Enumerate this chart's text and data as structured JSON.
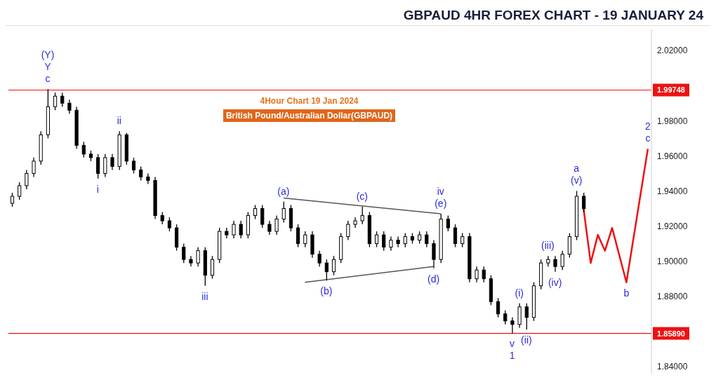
{
  "chart_data": {
    "type": "candlestick",
    "title": "GBPAUD 4HR FOREX CHART - 19 JANUARY 24",
    "subtitle": "4Hour Chart 19 Jan 2024",
    "color": "#000000",
    "categories": [
      null,
      null,
      null,
      null,
      null,
      null,
      null,
      null,
      null,
      null,
      null,
      null,
      null,
      null,
      null,
      null,
      null,
      null,
      null,
      null,
      null,
      null,
      null,
      null,
      null,
      null,
      null,
      null,
      null,
      null,
      null,
      null,
      null,
      null,
      null,
      null,
      null,
      null,
      null,
      null,
      null,
      null,
      null,
      null,
      null,
      null,
      null,
      null,
      null,
      null,
      null,
      null,
      null,
      null,
      null,
      null,
      null,
      null,
      null,
      null,
      null,
      null,
      null,
      null,
      null,
      null,
      null,
      null,
      null,
      null,
      null,
      null,
      null,
      null,
      null,
      null,
      null,
      null,
      null,
      null,
      null,
      null,
      null,
      null,
      null,
      null,
      null,
      null,
      null,
      null
    ],
    "ohlc": [
      [
        1.933,
        1.939,
        1.931,
        1.937
      ],
      [
        1.937,
        1.945,
        1.935,
        1.943
      ],
      [
        1.943,
        1.952,
        1.941,
        1.95
      ],
      [
        1.95,
        1.959,
        1.948,
        1.957
      ],
      [
        1.957,
        1.974,
        1.955,
        1.972
      ],
      [
        1.972,
        1.998,
        1.97,
        1.988
      ],
      [
        1.988,
        1.996,
        1.986,
        1.994
      ],
      [
        1.994,
        1.996,
        1.988,
        1.99
      ],
      [
        1.99,
        1.992,
        1.984,
        1.986
      ],
      [
        1.986,
        1.988,
        1.964,
        1.966
      ],
      [
        1.966,
        1.968,
        1.959,
        1.961
      ],
      [
        1.961,
        1.963,
        1.957,
        1.959
      ],
      [
        1.959,
        1.961,
        1.947,
        1.95
      ],
      [
        1.95,
        1.961,
        1.948,
        1.959
      ],
      [
        1.959,
        1.961,
        1.952,
        1.954
      ],
      [
        1.954,
        1.974,
        1.952,
        1.972
      ],
      [
        1.972,
        1.973,
        1.955,
        1.957
      ],
      [
        1.957,
        1.959,
        1.95,
        1.952
      ],
      [
        1.952,
        1.954,
        1.946,
        1.948
      ],
      [
        1.948,
        1.95,
        1.944,
        1.946
      ],
      [
        1.946,
        1.948,
        1.924,
        1.926
      ],
      [
        1.926,
        1.928,
        1.921,
        1.923
      ],
      [
        1.923,
        1.925,
        1.917,
        1.919
      ],
      [
        1.919,
        1.921,
        1.906,
        1.908
      ],
      [
        1.908,
        1.91,
        1.899,
        1.901
      ],
      [
        1.901,
        1.903,
        1.897,
        1.899
      ],
      [
        1.899,
        1.908,
        1.897,
        1.906
      ],
      [
        1.906,
        1.908,
        1.886,
        1.892
      ],
      [
        1.892,
        1.903,
        1.89,
        1.901
      ],
      [
        1.901,
        1.919,
        1.899,
        1.917
      ],
      [
        1.917,
        1.919,
        1.913,
        1.915
      ],
      [
        1.915,
        1.923,
        1.913,
        1.921
      ],
      [
        1.921,
        1.923,
        1.913,
        1.915
      ],
      [
        1.915,
        1.928,
        1.913,
        1.926
      ],
      [
        1.926,
        1.932,
        1.924,
        1.93
      ],
      [
        1.93,
        1.932,
        1.919,
        1.921
      ],
      [
        1.921,
        1.923,
        1.915,
        1.917
      ],
      [
        1.917,
        1.926,
        1.915,
        1.924
      ],
      [
        1.924,
        1.934,
        1.922,
        1.93
      ],
      [
        1.93,
        1.932,
        1.917,
        1.919
      ],
      [
        1.919,
        1.921,
        1.908,
        1.91
      ],
      [
        1.91,
        1.917,
        1.908,
        1.915
      ],
      [
        1.915,
        1.917,
        1.902,
        1.904
      ],
      [
        1.904,
        1.906,
        1.897,
        1.899
      ],
      [
        1.899,
        1.901,
        1.889,
        1.894
      ],
      [
        1.894,
        1.903,
        1.892,
        1.901
      ],
      [
        1.901,
        1.916,
        1.899,
        1.914
      ],
      [
        1.914,
        1.923,
        1.912,
        1.921
      ],
      [
        1.921,
        1.925,
        1.919,
        1.923
      ],
      [
        1.923,
        1.931,
        1.921,
        1.926
      ],
      [
        1.926,
        1.928,
        1.908,
        1.91
      ],
      [
        1.91,
        1.917,
        1.908,
        1.915
      ],
      [
        1.915,
        1.917,
        1.906,
        1.908
      ],
      [
        1.908,
        1.914,
        1.906,
        1.912
      ],
      [
        1.912,
        1.914,
        1.908,
        1.91
      ],
      [
        1.91,
        1.916,
        1.908,
        1.914
      ],
      [
        1.914,
        1.916,
        1.91,
        1.912
      ],
      [
        1.912,
        1.917,
        1.91,
        1.915
      ],
      [
        1.915,
        1.917,
        1.908,
        1.91
      ],
      [
        1.91,
        1.912,
        1.896,
        1.901
      ],
      [
        1.901,
        1.927,
        1.899,
        1.924
      ],
      [
        1.924,
        1.926,
        1.917,
        1.919
      ],
      [
        1.919,
        1.921,
        1.908,
        1.91
      ],
      [
        1.91,
        1.916,
        1.908,
        1.914
      ],
      [
        1.914,
        1.916,
        1.888,
        1.89
      ],
      [
        1.89,
        1.897,
        1.888,
        1.895
      ],
      [
        1.895,
        1.897,
        1.888,
        1.89
      ],
      [
        1.89,
        1.892,
        1.875,
        1.877
      ],
      [
        1.877,
        1.879,
        1.868,
        1.87
      ],
      [
        1.87,
        1.872,
        1.864,
        1.866
      ],
      [
        1.866,
        1.868,
        1.859,
        1.864
      ],
      [
        1.864,
        1.876,
        1.862,
        1.874
      ],
      [
        1.874,
        1.876,
        1.861,
        1.868
      ],
      [
        1.868,
        1.888,
        1.866,
        1.886
      ],
      [
        1.886,
        1.901,
        1.884,
        1.899
      ],
      [
        1.899,
        1.903,
        1.897,
        1.901
      ],
      [
        1.901,
        1.903,
        1.894,
        1.897
      ],
      [
        1.897,
        1.906,
        1.895,
        1.904
      ],
      [
        1.904,
        1.916,
        1.902,
        1.914
      ],
      [
        1.914,
        1.94,
        1.912,
        1.937
      ],
      [
        1.937,
        1.939,
        1.928,
        1.93
      ],
      null,
      null,
      null,
      null,
      null,
      null,
      null,
      null,
      null
    ],
    "series": [
      {
        "type": "line",
        "color": "#ee1111",
        "values": [
          null,
          null,
          null,
          null,
          null,
          null,
          null,
          null,
          null,
          null,
          null,
          null,
          null,
          null,
          null,
          null,
          null,
          null,
          null,
          null,
          null,
          null,
          null,
          null,
          null,
          null,
          null,
          null,
          null,
          null,
          null,
          null,
          null,
          null,
          null,
          null,
          null,
          null,
          null,
          null,
          null,
          null,
          null,
          null,
          null,
          null,
          null,
          null,
          null,
          null,
          null,
          null,
          null,
          null,
          null,
          null,
          null,
          null,
          null,
          null,
          null,
          null,
          null,
          null,
          null,
          null,
          null,
          null,
          null,
          null,
          null,
          null,
          null,
          null,
          null,
          null,
          null,
          null,
          null,
          null,
          1.93,
          1.899,
          1.915,
          1.906,
          1.919,
          null,
          1.888,
          null,
          null,
          1.964
        ]
      },
      {
        "type": "line",
        "color": "#555555",
        "values": [
          null,
          null,
          null,
          null,
          null,
          null,
          null,
          null,
          null,
          null,
          null,
          null,
          null,
          null,
          null,
          null,
          null,
          null,
          null,
          null,
          null,
          null,
          null,
          null,
          null,
          null,
          null,
          null,
          null,
          null,
          null,
          null,
          null,
          null,
          null,
          null,
          null,
          null,
          1.936,
          null,
          null,
          null,
          null,
          null,
          null,
          null,
          null,
          null,
          null,
          null,
          null,
          null,
          null,
          null,
          null,
          null,
          null,
          null,
          null,
          null,
          1.927,
          null,
          null,
          null,
          null,
          null,
          null,
          null,
          null,
          null,
          null,
          null,
          null,
          null,
          null,
          null,
          null,
          null,
          null,
          null,
          null,
          null,
          null,
          null,
          null,
          null,
          null,
          null,
          null,
          null
        ]
      },
      {
        "type": "line",
        "color": "#555555",
        "values": [
          null,
          null,
          null,
          null,
          null,
          null,
          null,
          null,
          null,
          null,
          null,
          null,
          null,
          null,
          null,
          null,
          null,
          null,
          null,
          null,
          null,
          null,
          null,
          null,
          null,
          null,
          null,
          null,
          null,
          null,
          null,
          null,
          null,
          null,
          null,
          null,
          null,
          null,
          null,
          null,
          null,
          1.888,
          null,
          null,
          null,
          null,
          null,
          null,
          null,
          null,
          null,
          null,
          null,
          null,
          null,
          null,
          null,
          null,
          null,
          1.897,
          null,
          null,
          null,
          null,
          null,
          null,
          null,
          null,
          null,
          null,
          null,
          null,
          null,
          null,
          null,
          null,
          null,
          null,
          null,
          null,
          null,
          null,
          null,
          null,
          null,
          null,
          null,
          null,
          null,
          null
        ]
      }
    ],
    "ylim": [
      1.836,
      2.032
    ],
    "yticks": [
      {
        "value": 1.84,
        "label": "1.84000"
      },
      {
        "value": 1.88,
        "label": "1.88000"
      },
      {
        "value": 1.9,
        "label": "1.90000"
      },
      {
        "value": 1.92,
        "label": "1.92000"
      },
      {
        "value": 1.94,
        "label": "1.94000"
      },
      {
        "value": 1.96,
        "label": "1.96000"
      },
      {
        "value": 1.98,
        "label": "1.98000"
      },
      {
        "value": 2.02,
        "label": "2.02000"
      }
    ],
    "tick_labels": "y",
    "ref_lines": [
      {
        "axis": "y",
        "value": 1.99748,
        "label": "1.99748",
        "color": "#ee1111"
      },
      {
        "axis": "y",
        "value": 1.8589,
        "label": "1.85890",
        "color": "#ee1111"
      }
    ],
    "annotations": [
      {
        "text": "c",
        "y": 1.998
      },
      {
        "text": "Y",
        "y": 1.998
      },
      {
        "text": "(Y)",
        "y": 1.998
      },
      {
        "text": "i",
        "y": 1.947
      },
      {
        "text": "ii",
        "y": 1.974
      },
      {
        "text": "iii",
        "y": 1.886
      },
      {
        "text": "(a)",
        "y": 1.934
      },
      {
        "text": "(b)",
        "y": 1.889
      },
      {
        "text": "(c)",
        "y": 1.931
      },
      {
        "text": "(d)",
        "y": 1.896
      },
      {
        "text": "(e)",
        "y": 1.927
      },
      {
        "text": "iv",
        "y": 1.927
      },
      {
        "text": "v",
        "y": 1.859
      },
      {
        "text": "1",
        "y": 1.859
      },
      {
        "text": "(i)",
        "y": 1.876
      },
      {
        "text": "(ii)",
        "y": 1.861
      },
      {
        "text": "(iii)",
        "y": 1.903
      },
      {
        "text": "(iv)",
        "y": 1.894
      },
      {
        "text": "(v)",
        "y": 1.94
      },
      {
        "text": "a",
        "y": 1.94
      },
      {
        "text": "b",
        "y": 1.888
      },
      {
        "text": "c",
        "y": 1.964
      },
      {
        "text": "2",
        "y": 1.964
      },
      "British Pound/Australian Dollar(GBPAUD)"
    ]
  }
}
